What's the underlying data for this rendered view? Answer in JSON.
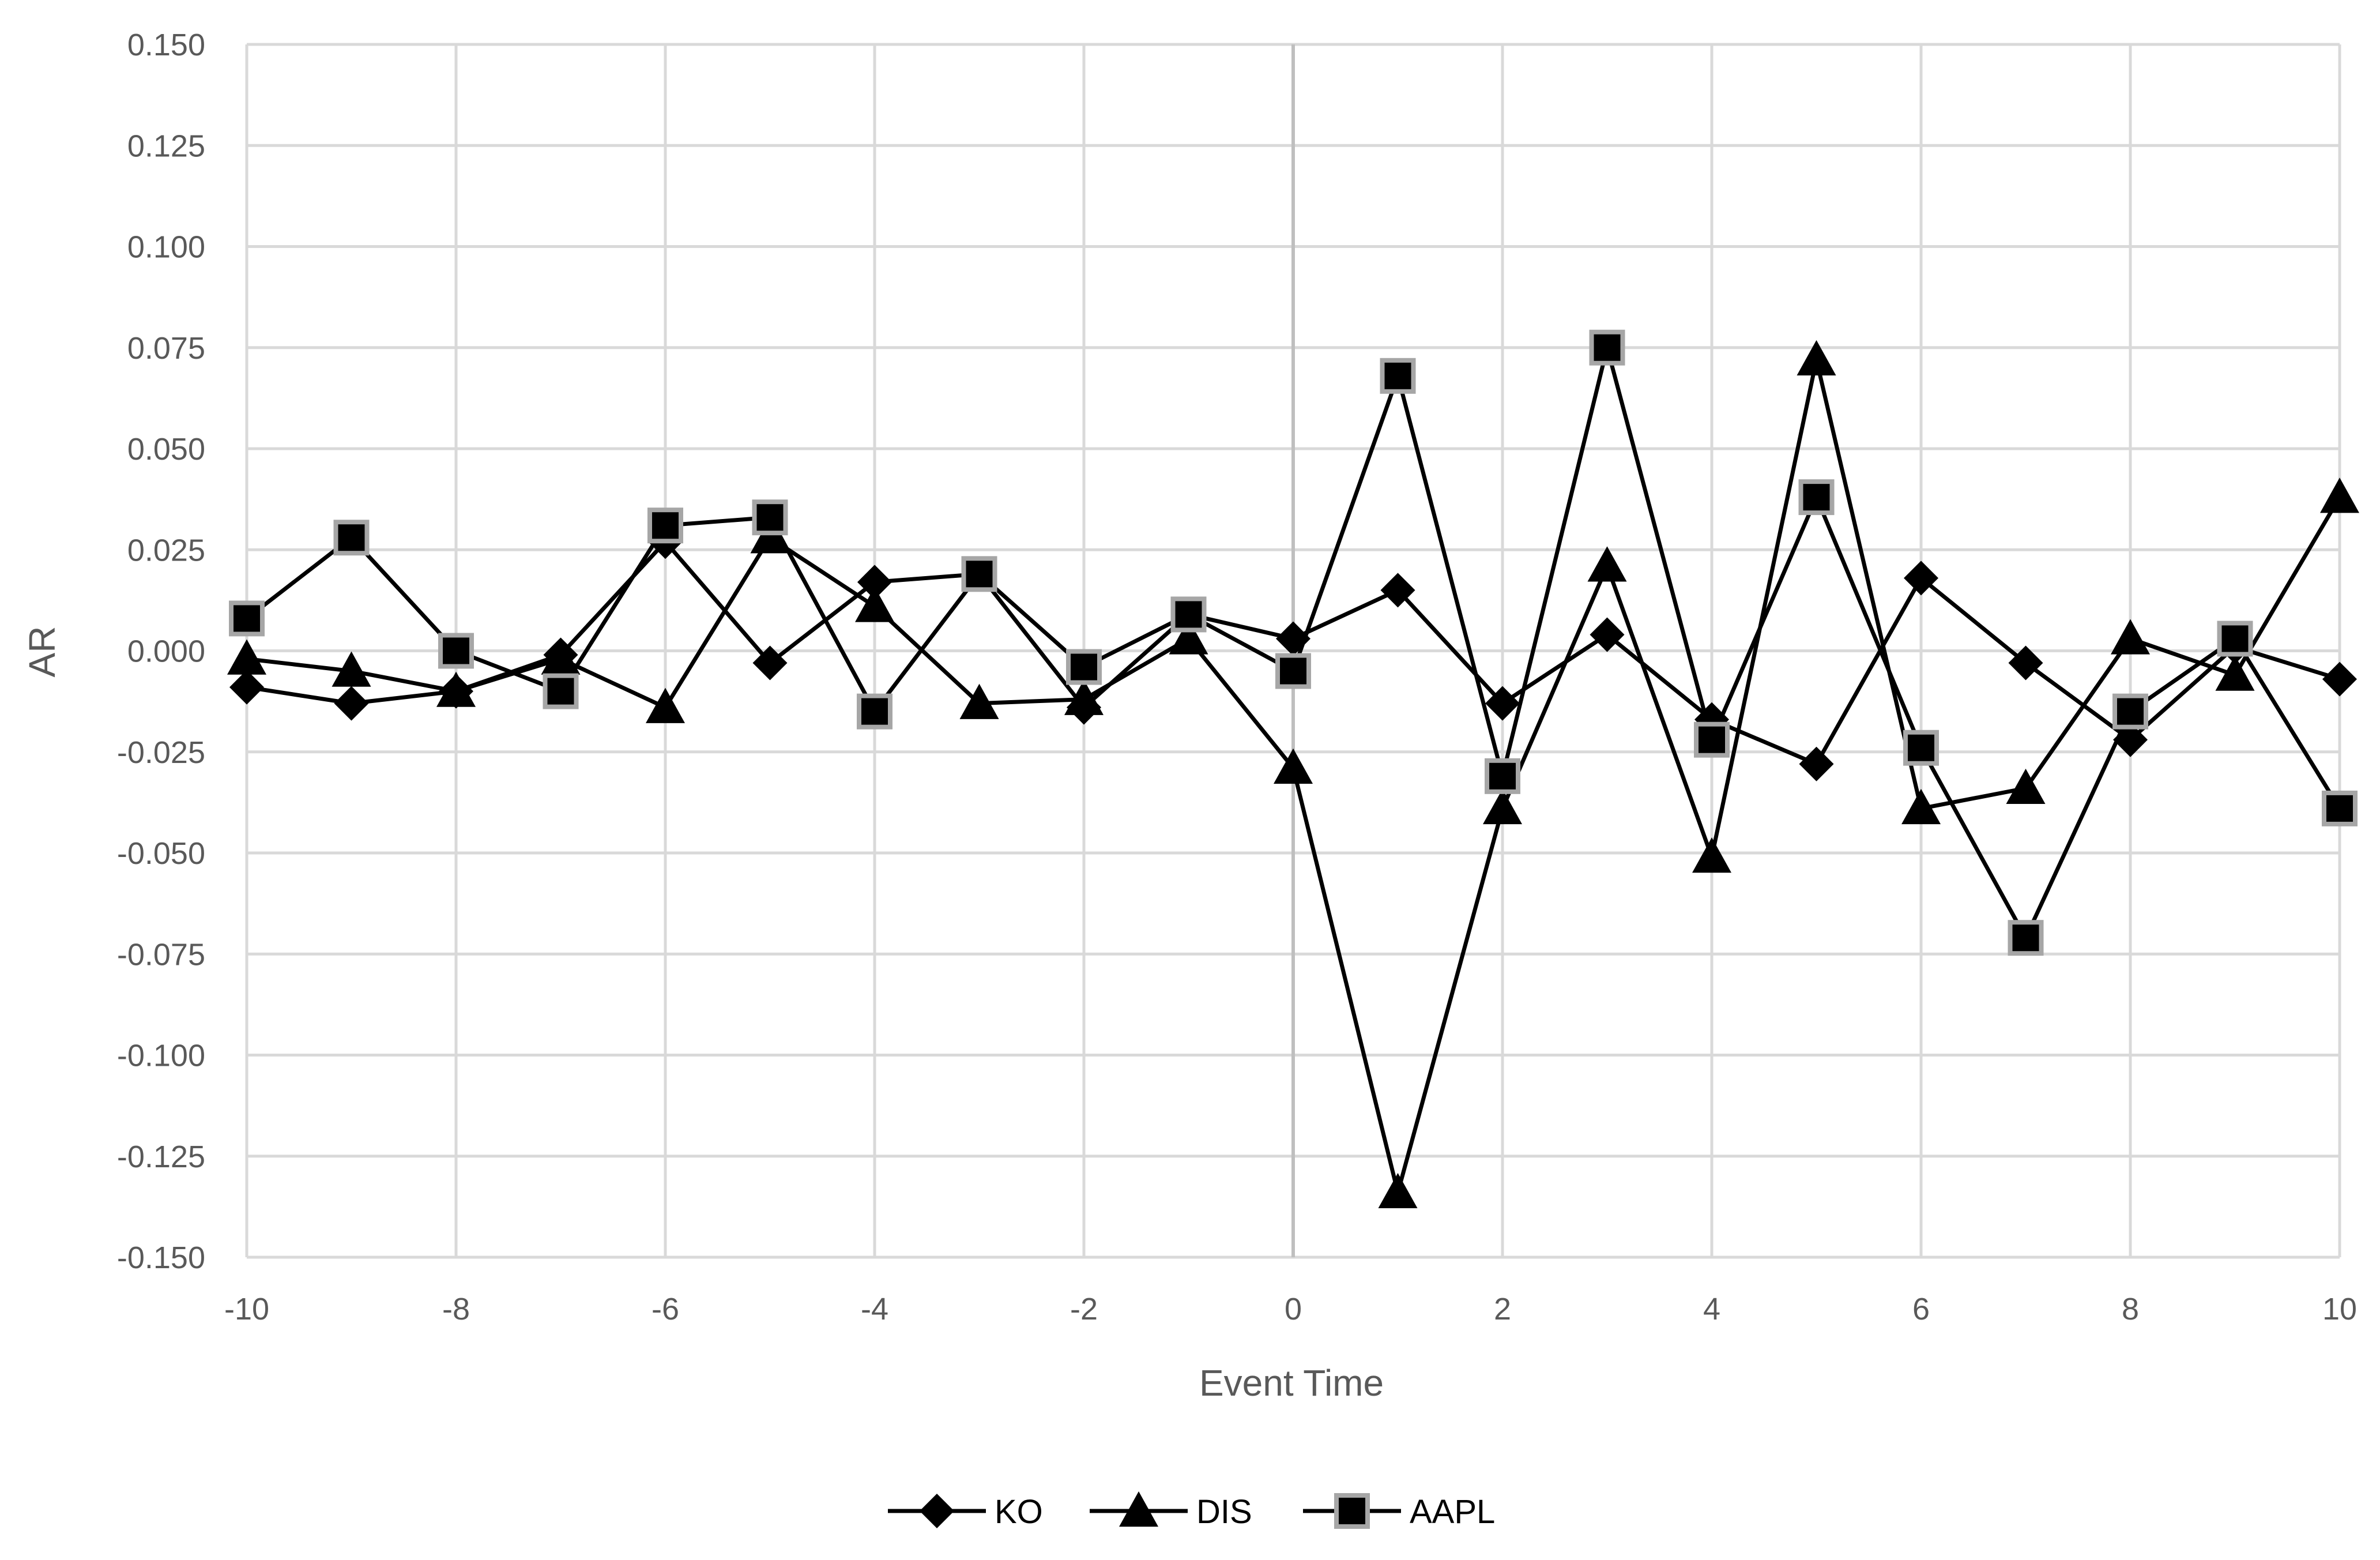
{
  "chart_data": {
    "type": "line",
    "title": "",
    "xlabel": "Event Time",
    "ylabel": "AR",
    "xlim": [
      -10,
      10
    ],
    "ylim": [
      -0.15,
      0.15
    ],
    "x_ticks": [
      "-10",
      "-8",
      "-6",
      "-4",
      "-2",
      "0",
      "2",
      "4",
      "6",
      "8",
      "10"
    ],
    "x_tick_values": [
      -10,
      -8,
      -6,
      -4,
      -2,
      0,
      2,
      4,
      6,
      8,
      10
    ],
    "y_ticks": [
      "-0.150",
      "-0.125",
      "-0.100",
      "-0.075",
      "-0.050",
      "-0.025",
      "0.000",
      "0.025",
      "0.050",
      "0.075",
      "0.100",
      "0.125",
      "0.150"
    ],
    "y_tick_values": [
      -0.15,
      -0.125,
      -0.1,
      -0.075,
      -0.05,
      -0.025,
      0,
      0.025,
      0.05,
      0.075,
      0.1,
      0.125,
      0.15
    ],
    "grid": true,
    "legend_position": "bottom-center",
    "x": [
      -10,
      -9,
      -8,
      -7,
      -6,
      -5,
      -4,
      -3,
      -2,
      -1,
      0,
      1,
      2,
      3,
      4,
      5,
      6,
      7,
      8,
      9,
      10
    ],
    "series": [
      {
        "name": "KO",
        "marker": "diamond",
        "values": [
          -0.009,
          -0.013,
          -0.01,
          -0.001,
          0.027,
          -0.003,
          0.017,
          0.019,
          -0.014,
          0.009,
          0.003,
          0.015,
          -0.013,
          0.004,
          -0.017,
          -0.028,
          0.018,
          -0.003,
          -0.022,
          0.001,
          -0.007
        ]
      },
      {
        "name": "DIS",
        "marker": "triangle",
        "values": [
          -0.002,
          -0.005,
          -0.01,
          -0.002,
          -0.014,
          0.028,
          0.011,
          -0.013,
          -0.012,
          0.003,
          -0.029,
          -0.134,
          -0.039,
          0.021,
          -0.051,
          0.072,
          -0.039,
          -0.034,
          0.003,
          -0.006,
          0.038
        ]
      },
      {
        "name": "AAPL",
        "marker": "square",
        "values": [
          0.008,
          0.028,
          0.0,
          -0.01,
          0.031,
          0.033,
          -0.015,
          0.019,
          -0.004,
          0.009,
          -0.005,
          0.068,
          -0.031,
          0.075,
          -0.022,
          0.038,
          -0.024,
          -0.071,
          -0.015,
          0.003,
          -0.039
        ]
      }
    ],
    "colors": {
      "line": "#000000",
      "marker_fill": "#000000",
      "square_marker_stroke": "#a6a6a6",
      "grid": "#d9d9d9",
      "zero_line": "#bfbfbf",
      "tick_text": "#595959"
    }
  }
}
